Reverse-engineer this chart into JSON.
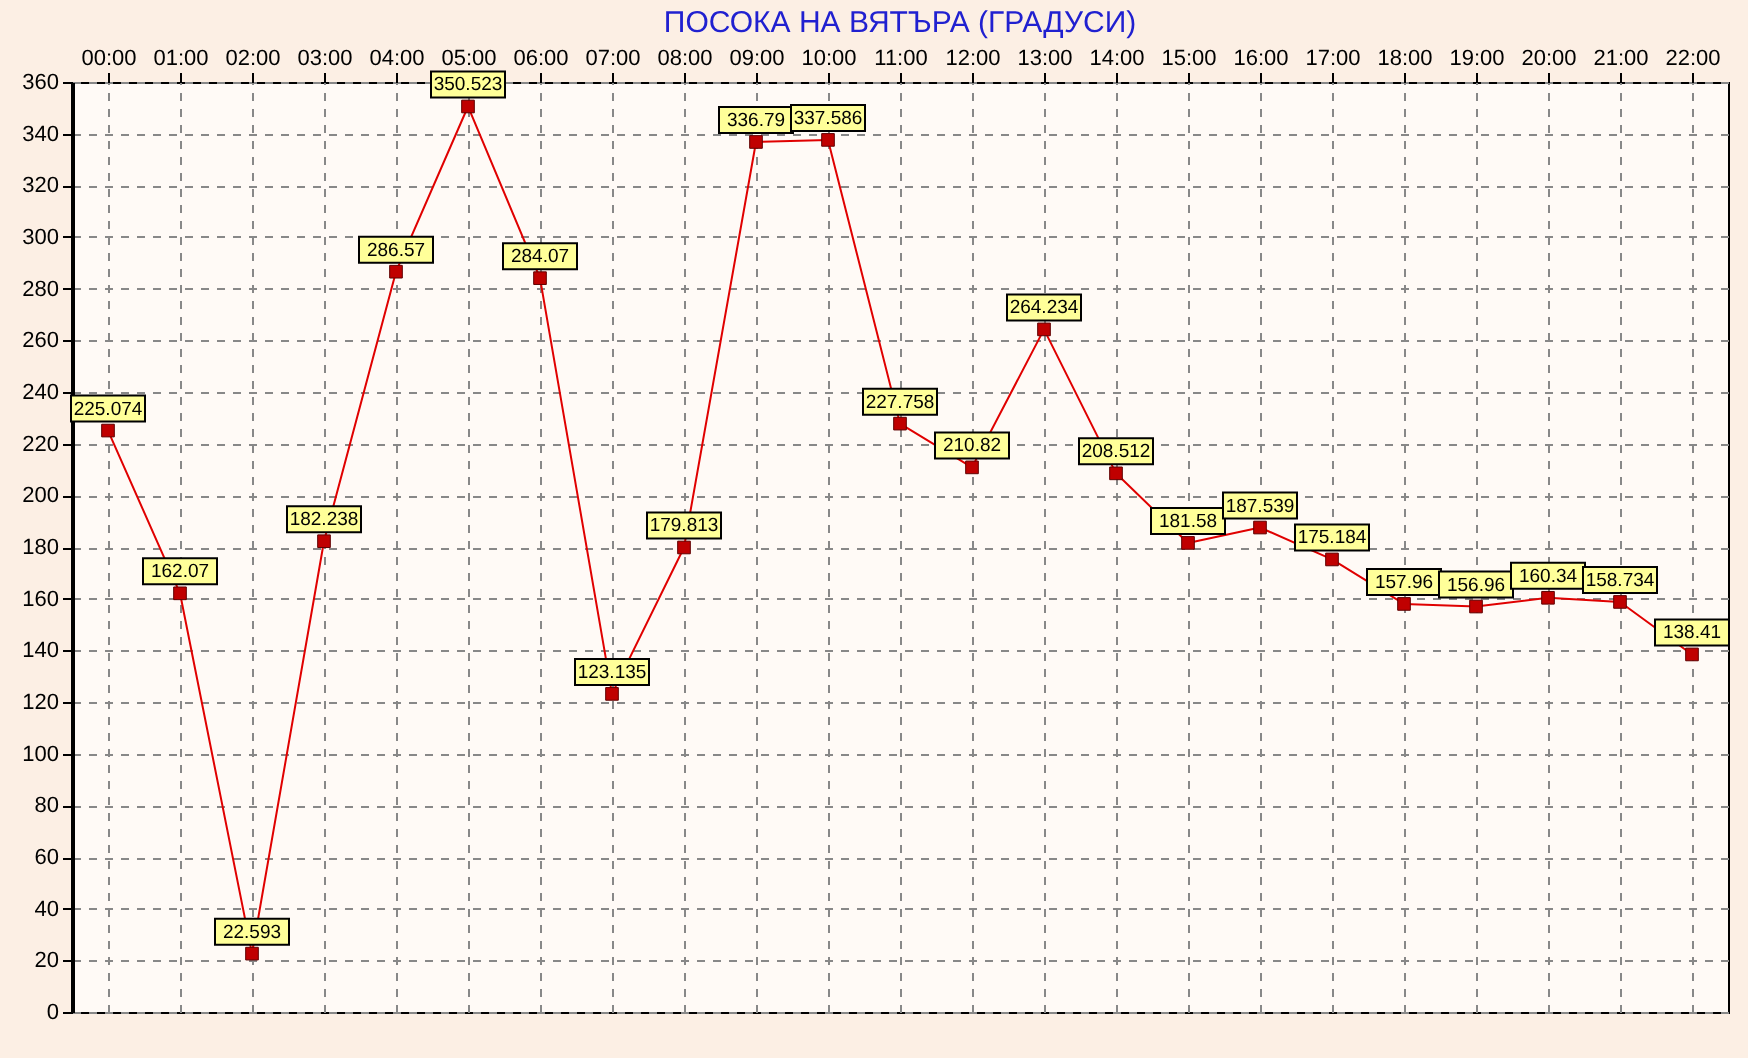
{
  "chart_data": {
    "type": "line",
    "title": "ПОСОКА НА ВЯТЪРА    (ГРАДУСИ)",
    "categories": [
      "00:00",
      "01:00",
      "02:00",
      "03:00",
      "04:00",
      "05:00",
      "06:00",
      "07:00",
      "08:00",
      "09:00",
      "10:00",
      "11:00",
      "12:00",
      "13:00",
      "14:00",
      "15:00",
      "16:00",
      "17:00",
      "18:00",
      "19:00",
      "20:00",
      "21:00",
      "22:00"
    ],
    "series": [
      {
        "color": "#e00000",
        "values": [
          225.074,
          162.07,
          22.593,
          182.238,
          286.57,
          350.523,
          284.07,
          123.135,
          179.813,
          336.79,
          337.586,
          227.758,
          210.82,
          264.234,
          208.512,
          181.58,
          187.539,
          175.184,
          157.96,
          156.96,
          160.34,
          158.734,
          138.41
        ]
      }
    ],
    "ylim": [
      0,
      360
    ],
    "yticks": [
      0,
      20,
      40,
      60,
      80,
      100,
      120,
      140,
      160,
      180,
      200,
      220,
      240,
      260,
      280,
      300,
      320,
      340,
      360
    ],
    "grid": true,
    "marker": "square",
    "line_style": "solid",
    "data_labels": true
  }
}
